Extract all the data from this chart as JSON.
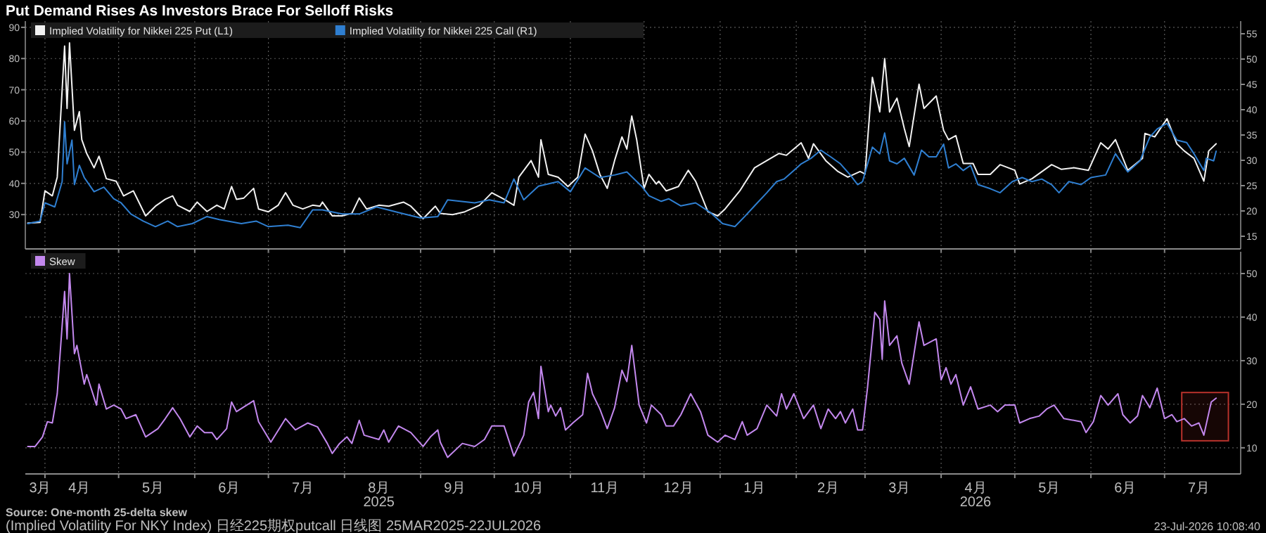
{
  "chart_data": [
    {
      "type": "line",
      "title": "Put Demand Rises As Investors Brace For Selloff Risks",
      "legend": "top left",
      "grid": true,
      "tick_labels": "y",
      "xlim": [
        "2025-03-24",
        "2026-08-01"
      ],
      "ylim": [
        19,
        92
      ],
      "yticks": [
        30,
        40,
        50,
        60,
        70,
        80,
        90
      ],
      "y2lim": [
        12.5,
        57.5
      ],
      "y2ticks": [
        15,
        20,
        25,
        30,
        35,
        40,
        45,
        50,
        55
      ],
      "xticks": [
        {
          "value": "2025-04-01",
          "label": null
        },
        {
          "value": "2025-05-01",
          "label": null
        },
        {
          "value": "2025-06-01",
          "label": null
        },
        {
          "value": "2025-07-01",
          "label": null
        },
        {
          "value": "2025-08-01",
          "label": null
        },
        {
          "value": "2025-09-01",
          "label": null
        },
        {
          "value": "2025-10-01",
          "label": null
        },
        {
          "value": "2025-11-01",
          "label": null
        },
        {
          "value": "2025-12-01",
          "label": null
        },
        {
          "value": "2026-01-01",
          "label": null
        },
        {
          "value": "2026-02-01",
          "label": null
        },
        {
          "value": "2026-03-01",
          "label": null
        },
        {
          "value": "2026-04-01",
          "label": null
        },
        {
          "value": "2026-05-01",
          "label": null
        },
        {
          "value": "2026-06-01",
          "label": null
        },
        {
          "value": "2026-07-01",
          "label": null
        }
      ],
      "series": [
        {
          "name": "Implied Volatility for Nikkei 225 Put (L1)",
          "color": "#f2f2f2",
          "x": [
            "2025-03-25",
            "2025-03-30",
            "2025-04-01",
            "2025-04-04",
            "2025-04-06",
            "2025-04-09",
            "2025-04-10",
            "2025-04-11",
            "2025-04-13",
            "2025-04-15",
            "2025-04-16",
            "2025-04-18",
            "2025-04-21",
            "2025-04-23",
            "2025-04-26",
            "2025-04-30",
            "2025-05-03",
            "2025-05-07",
            "2025-05-12",
            "2025-05-16",
            "2025-05-20",
            "2025-05-23",
            "2025-05-25",
            "2025-05-30",
            "2025-06-02",
            "2025-06-06",
            "2025-06-10",
            "2025-06-13",
            "2025-06-16",
            "2025-06-18",
            "2025-06-21",
            "2025-06-25",
            "2025-06-27",
            "2025-07-01",
            "2025-07-05",
            "2025-07-08",
            "2025-07-11",
            "2025-07-15",
            "2025-07-19",
            "2025-07-22",
            "2025-07-23",
            "2025-07-27",
            "2025-07-31",
            "2025-08-04",
            "2025-08-07",
            "2025-08-10",
            "2025-08-15",
            "2025-08-19",
            "2025-08-25",
            "2025-08-28",
            "2025-09-02",
            "2025-09-07",
            "2025-09-09",
            "2025-09-14",
            "2025-09-19",
            "2025-09-25",
            "2025-09-30",
            "2025-10-05",
            "2025-10-09",
            "2025-10-11",
            "2025-10-16",
            "2025-10-19",
            "2025-10-20",
            "2025-10-23",
            "2025-10-27",
            "2025-10-31",
            "2025-11-04",
            "2025-11-07",
            "2025-11-10",
            "2025-11-13",
            "2025-11-16",
            "2025-11-19",
            "2025-11-22",
            "2025-11-24",
            "2025-11-26",
            "2025-11-28",
            "2025-12-01",
            "2025-12-03",
            "2025-12-06",
            "2025-12-07",
            "2025-12-10",
            "2025-12-15",
            "2025-12-19",
            "2025-12-22",
            "2025-12-27",
            "2025-12-31",
            "2026-01-03",
            "2026-01-09",
            "2026-01-15",
            "2026-01-20",
            "2026-01-25",
            "2026-01-28",
            "2026-02-03",
            "2026-02-06",
            "2026-02-08",
            "2026-02-13",
            "2026-02-18",
            "2026-02-22",
            "2026-02-27",
            "2026-03-01",
            "2026-03-04",
            "2026-03-07",
            "2026-03-09",
            "2026-03-11",
            "2026-03-14",
            "2026-03-17",
            "2026-03-19",
            "2026-03-23",
            "2026-03-25",
            "2026-03-30",
            "2026-04-02",
            "2026-04-04",
            "2026-04-07",
            "2026-04-10",
            "2026-04-14",
            "2026-04-16",
            "2026-04-21",
            "2026-04-25",
            "2026-05-01",
            "2026-05-03",
            "2026-05-08",
            "2026-05-16",
            "2026-05-20",
            "2026-05-25",
            "2026-05-31",
            "2026-06-05",
            "2026-06-08",
            "2026-06-11",
            "2026-06-16",
            "2026-06-22",
            "2026-06-23",
            "2026-06-27",
            "2026-07-02",
            "2026-07-06",
            "2026-07-09",
            "2026-07-13",
            "2026-07-17",
            "2026-07-19",
            "2026-07-22"
          ],
          "values": [
            27.3,
            27.5,
            37.6,
            36,
            42,
            84,
            64,
            85,
            57,
            63,
            54,
            49.6,
            45,
            48.7,
            41.5,
            40.7,
            36,
            37.6,
            29.6,
            32.7,
            34.9,
            36,
            33,
            31,
            34,
            31,
            33,
            31.8,
            39,
            34.9,
            35.3,
            38.4,
            31.8,
            30.9,
            33,
            37,
            33,
            31.8,
            33,
            32.7,
            34,
            29.6,
            29.6,
            30.4,
            35.3,
            31.8,
            33,
            32.7,
            34,
            32.7,
            28.7,
            32.7,
            30.4,
            30,
            30.9,
            33,
            37,
            34.9,
            33,
            42,
            47.3,
            42,
            54,
            42.9,
            42,
            39,
            42,
            55.8,
            50.4,
            42.9,
            38.4,
            47.3,
            54.9,
            51,
            61.6,
            54,
            38.4,
            42.9,
            39.8,
            40.7,
            37.6,
            39,
            44.2,
            40.7,
            30.9,
            29.6,
            31.8,
            37.6,
            45,
            47.3,
            49.6,
            49,
            53,
            48,
            52.7,
            47.3,
            43.8,
            42,
            43.8,
            43,
            74,
            62.9,
            80,
            62.9,
            67.3,
            57.6,
            51.8,
            71.8,
            64,
            68,
            57,
            54,
            55.3,
            46.4,
            46.4,
            42.9,
            42.9,
            46,
            44.2,
            39.8,
            41.5,
            46,
            44.5,
            45,
            44.2,
            53,
            51,
            54,
            44.2,
            48,
            56,
            54.9,
            60.7,
            52.7,
            50.4,
            48,
            40.7,
            50.4,
            52.7
          ]
        },
        {
          "name": "Implied Volatility for Nikkei 225 Call (R1)",
          "color": "#2f7fd1",
          "axis": "y2",
          "x": [
            "2025-03-25",
            "2025-03-30",
            "2025-04-01",
            "2025-04-05",
            "2025-04-08",
            "2025-04-09",
            "2025-04-10",
            "2025-04-12",
            "2025-04-13",
            "2025-04-15",
            "2025-04-17",
            "2025-04-21",
            "2025-04-25",
            "2025-04-29",
            "2025-05-02",
            "2025-05-06",
            "2025-05-11",
            "2025-05-16",
            "2025-05-21",
            "2025-05-25",
            "2025-05-31",
            "2025-06-06",
            "2025-06-11",
            "2025-06-20",
            "2025-06-26",
            "2025-07-01",
            "2025-07-09",
            "2025-07-14",
            "2025-07-19",
            "2025-07-23",
            "2025-07-31",
            "2025-08-07",
            "2025-08-14",
            "2025-08-23",
            "2025-09-01",
            "2025-09-08",
            "2025-09-12",
            "2025-09-23",
            "2025-09-29",
            "2025-10-05",
            "2025-10-09",
            "2025-10-13",
            "2025-10-19",
            "2025-10-27",
            "2025-11-01",
            "2025-11-07",
            "2025-11-13",
            "2025-11-19",
            "2025-11-24",
            "2025-11-30",
            "2025-12-03",
            "2025-12-08",
            "2025-12-11",
            "2025-12-16",
            "2025-12-22",
            "2025-12-28",
            "2026-01-02",
            "2026-01-07",
            "2026-01-11",
            "2026-01-15",
            "2026-01-20",
            "2026-01-24",
            "2026-01-27",
            "2026-01-31",
            "2026-02-03",
            "2026-02-07",
            "2026-02-11",
            "2026-02-15",
            "2026-02-19",
            "2026-02-23",
            "2026-02-26",
            "2026-02-28",
            "2026-03-04",
            "2026-03-07",
            "2026-03-09",
            "2026-03-11",
            "2026-03-14",
            "2026-03-17",
            "2026-03-21",
            "2026-03-24",
            "2026-03-27",
            "2026-03-30",
            "2026-04-02",
            "2026-04-04",
            "2026-04-07",
            "2026-04-10",
            "2026-04-13",
            "2026-04-16",
            "2026-04-21",
            "2026-04-25",
            "2026-04-30",
            "2026-05-04",
            "2026-05-08",
            "2026-05-12",
            "2026-05-16",
            "2026-05-19",
            "2026-05-23",
            "2026-05-28",
            "2026-06-01",
            "2026-06-07",
            "2026-06-11",
            "2026-06-16",
            "2026-06-21",
            "2026-06-25",
            "2026-06-28",
            "2026-07-02",
            "2026-07-06",
            "2026-07-10",
            "2026-07-13",
            "2026-07-17",
            "2026-07-18",
            "2026-07-21",
            "2026-07-22"
          ],
          "values": [
            17.5,
            18,
            21.6,
            20.8,
            25.8,
            37.6,
            29.3,
            34,
            25.2,
            29,
            26.6,
            23.8,
            24.7,
            22.4,
            21.6,
            19.4,
            18,
            16.9,
            18,
            16.9,
            17.5,
            18.9,
            18.3,
            17.5,
            18,
            16.9,
            17.2,
            16.7,
            20.2,
            20.2,
            19.4,
            19.4,
            20.8,
            19.7,
            18.6,
            18.9,
            22.2,
            21.6,
            22.2,
            21.6,
            26.3,
            22.2,
            24.9,
            25.8,
            23.8,
            28.5,
            26.6,
            27.1,
            27.7,
            24.9,
            23,
            21.9,
            22.4,
            21,
            21.6,
            19.7,
            17.5,
            16.9,
            18.9,
            21,
            23.6,
            25.8,
            26.3,
            28,
            29.3,
            30.4,
            32,
            30.7,
            29.3,
            27.1,
            25.2,
            25.8,
            32.6,
            31.3,
            35.4,
            29.9,
            29.3,
            30.4,
            27.1,
            32,
            30.7,
            30.7,
            33.2,
            28.5,
            29.3,
            28,
            29,
            25.2,
            24.4,
            23.6,
            25.8,
            26.6,
            25.8,
            26.3,
            25.2,
            23.6,
            25.8,
            25.2,
            26.6,
            27.1,
            31.3,
            27.7,
            29.9,
            34.6,
            36.2,
            37.3,
            34,
            33.5,
            31.3,
            28,
            30.4,
            29.9,
            31.8
          ]
        }
      ]
    },
    {
      "type": "line",
      "legend": "top left",
      "grid": true,
      "xlim": [
        "2025-03-24",
        "2026-08-01"
      ],
      "y2lim": [
        4,
        55
      ],
      "y2ticks": [
        10,
        20,
        30,
        40,
        50
      ],
      "xticks": [
        {
          "value": "2025-03-30",
          "label": "3月"
        },
        {
          "value": "2025-04-01",
          "label": null
        },
        {
          "value": "2025-04-15",
          "label": "4月"
        },
        {
          "value": "2025-05-01",
          "label": null
        },
        {
          "value": "2025-05-15",
          "label": "5月"
        },
        {
          "value": "2025-06-01",
          "label": null
        },
        {
          "value": "2025-06-15",
          "label": "6月"
        },
        {
          "value": "2025-07-01",
          "label": null
        },
        {
          "value": "2025-07-15",
          "label": "7月"
        },
        {
          "value": "2025-08-01",
          "label": null
        },
        {
          "value": "2025-08-15",
          "label": "8月\n2025"
        },
        {
          "value": "2025-09-01",
          "label": null
        },
        {
          "value": "2025-09-15",
          "label": "9月"
        },
        {
          "value": "2025-10-01",
          "label": null
        },
        {
          "value": "2025-10-15",
          "label": "10月"
        },
        {
          "value": "2025-11-01",
          "label": null
        },
        {
          "value": "2025-11-15",
          "label": "11月"
        },
        {
          "value": "2025-12-01",
          "label": null
        },
        {
          "value": "2025-12-15",
          "label": "12月"
        },
        {
          "value": "2026-01-01",
          "label": null
        },
        {
          "value": "2026-01-15",
          "label": "1月"
        },
        {
          "value": "2026-02-01",
          "label": null
        },
        {
          "value": "2026-02-14",
          "label": "2月"
        },
        {
          "value": "2026-03-01",
          "label": null
        },
        {
          "value": "2026-03-15",
          "label": "3月"
        },
        {
          "value": "2026-04-01",
          "label": null
        },
        {
          "value": "2026-04-15",
          "label": "4月\n2026"
        },
        {
          "value": "2026-05-01",
          "label": null
        },
        {
          "value": "2026-05-15",
          "label": "5月"
        },
        {
          "value": "2026-06-01",
          "label": null
        },
        {
          "value": "2026-06-15",
          "label": "6月"
        },
        {
          "value": "2026-07-01",
          "label": null
        },
        {
          "value": "2026-07-15",
          "label": "7月"
        }
      ],
      "bands": [
        {
          "axis": "x",
          "from": "2026-07-08",
          "to": "2026-07-27",
          "color": "#b8322c"
        }
      ],
      "annotations": [
        "Source: One-month 25-delta skew",
        "(Implied Volatility For NKY Index) 日经225期权putcall 日线图 25MAR2025-22JUL2026",
        "23-Jul-2026 10:08:40"
      ],
      "series": [
        {
          "name": "Skew",
          "color": "#c388ee",
          "axis": "y2",
          "x": [
            "2025-03-25",
            "2025-03-28",
            "2025-03-31",
            "2025-04-02",
            "2025-04-04",
            "2025-04-06",
            "2025-04-09",
            "2025-04-10",
            "2025-04-11",
            "2025-04-13",
            "2025-04-14",
            "2025-04-17",
            "2025-04-18",
            "2025-04-22",
            "2025-04-23",
            "2025-04-26",
            "2025-04-29",
            "2025-05-02",
            "2025-05-04",
            "2025-05-08",
            "2025-05-12",
            "2025-05-17",
            "2025-05-20",
            "2025-05-23",
            "2025-05-26",
            "2025-05-30",
            "2025-06-02",
            "2025-06-05",
            "2025-06-08",
            "2025-06-10",
            "2025-06-14",
            "2025-06-16",
            "2025-06-18",
            "2025-06-25",
            "2025-06-27",
            "2025-07-02",
            "2025-07-08",
            "2025-07-12",
            "2025-07-17",
            "2025-07-21",
            "2025-07-25",
            "2025-07-27",
            "2025-07-30",
            "2025-08-02",
            "2025-08-04",
            "2025-08-07",
            "2025-08-09",
            "2025-08-15",
            "2025-08-17",
            "2025-08-19",
            "2025-08-23",
            "2025-08-28",
            "2025-09-02",
            "2025-09-05",
            "2025-09-08",
            "2025-09-09",
            "2025-09-12",
            "2025-09-18",
            "2025-09-23",
            "2025-09-27",
            "2025-09-30",
            "2025-10-05",
            "2025-10-09",
            "2025-10-13",
            "2025-10-15",
            "2025-10-17",
            "2025-10-19",
            "2025-10-20",
            "2025-10-23",
            "2025-10-24",
            "2025-10-26",
            "2025-10-28",
            "2025-10-30",
            "2025-11-02",
            "2025-11-06",
            "2025-11-08",
            "2025-11-10",
            "2025-11-13",
            "2025-11-16",
            "2025-11-19",
            "2025-11-22",
            "2025-11-24",
            "2025-11-26",
            "2025-11-29",
            "2025-12-02",
            "2025-12-04",
            "2025-12-08",
            "2025-12-10",
            "2025-12-13",
            "2025-12-16",
            "2025-12-20",
            "2025-12-24",
            "2025-12-27",
            "2025-12-31",
            "2026-01-03",
            "2026-01-07",
            "2026-01-10",
            "2026-01-12",
            "2026-01-16",
            "2026-01-20",
            "2026-01-24",
            "2026-01-26",
            "2026-01-28",
            "2026-01-31",
            "2026-02-04",
            "2026-02-08",
            "2026-02-11",
            "2026-02-14",
            "2026-02-17",
            "2026-02-19",
            "2026-02-21",
            "2026-02-24",
            "2026-02-26",
            "2026-02-28",
            "2026-03-02",
            "2026-03-05",
            "2026-03-07",
            "2026-03-08",
            "2026-03-09",
            "2026-03-11",
            "2026-03-14",
            "2026-03-16",
            "2026-03-19",
            "2026-03-23",
            "2026-03-25",
            "2026-03-30",
            "2026-04-01",
            "2026-04-03",
            "2026-04-05",
            "2026-04-07",
            "2026-04-10",
            "2026-04-13",
            "2026-04-16",
            "2026-04-21",
            "2026-04-24",
            "2026-04-27",
            "2026-05-01",
            "2026-05-03",
            "2026-05-07",
            "2026-05-11",
            "2026-05-14",
            "2026-05-17",
            "2026-05-21",
            "2026-05-28",
            "2026-05-30",
            "2026-06-02",
            "2026-06-05",
            "2026-06-08",
            "2026-06-12",
            "2026-06-14",
            "2026-06-17",
            "2026-06-20",
            "2026-06-22",
            "2026-06-25",
            "2026-06-28",
            "2026-07-01",
            "2026-07-04",
            "2026-07-06",
            "2026-07-09",
            "2026-07-12",
            "2026-07-15",
            "2026-07-17",
            "2026-07-20",
            "2026-07-22"
          ],
          "values": [
            10.3,
            10.3,
            12.5,
            16,
            15.7,
            22.4,
            45.9,
            35,
            50,
            31.6,
            33.5,
            24.6,
            26.8,
            19.8,
            24.6,
            18.9,
            19.8,
            18.9,
            16.7,
            17.6,
            12.5,
            14.4,
            16.7,
            19.2,
            16.7,
            12.5,
            15,
            13.5,
            13.5,
            11.9,
            14.4,
            20.5,
            18.3,
            20.8,
            16,
            11.3,
            16.7,
            14.1,
            15.7,
            14.8,
            11,
            8.7,
            11,
            12.5,
            11,
            16.3,
            12.9,
            11.9,
            14.1,
            11.3,
            15,
            13.5,
            10.3,
            12.5,
            14.1,
            11.3,
            7.8,
            11,
            10.3,
            11.9,
            15,
            15,
            8.1,
            12.9,
            20.5,
            22.7,
            16.7,
            28.7,
            18.3,
            19.8,
            17.3,
            19.2,
            14.1,
            15.7,
            17.6,
            27.1,
            22.4,
            18.9,
            14.4,
            19.2,
            27.8,
            25.2,
            33.5,
            19.8,
            15.7,
            19.8,
            17.6,
            15,
            15,
            17.6,
            22.4,
            18.3,
            12.9,
            11.3,
            12.9,
            11.9,
            16,
            12.9,
            14.4,
            19.8,
            17.3,
            22.4,
            18.9,
            22.4,
            16.7,
            19.8,
            14.4,
            18.9,
            16.7,
            18.3,
            15.7,
            18.9,
            14.1,
            14.1,
            23.7,
            41.1,
            39.5,
            30.3,
            43.7,
            33.5,
            35.7,
            29.4,
            24.6,
            38.9,
            33.5,
            35,
            25.6,
            28.4,
            24.6,
            26.8,
            19.8,
            24,
            18.9,
            19.8,
            18.3,
            19.8,
            19.8,
            15.7,
            16.7,
            17.3,
            18.9,
            19.8,
            16.7,
            16,
            13.5,
            16,
            22,
            19.8,
            22.4,
            17.6,
            15.7,
            17.3,
            22,
            19.2,
            23.7,
            16.7,
            17.6,
            16,
            16.7,
            15,
            15.7,
            12.9,
            20.5,
            21.4
          ]
        }
      ]
    }
  ]
}
